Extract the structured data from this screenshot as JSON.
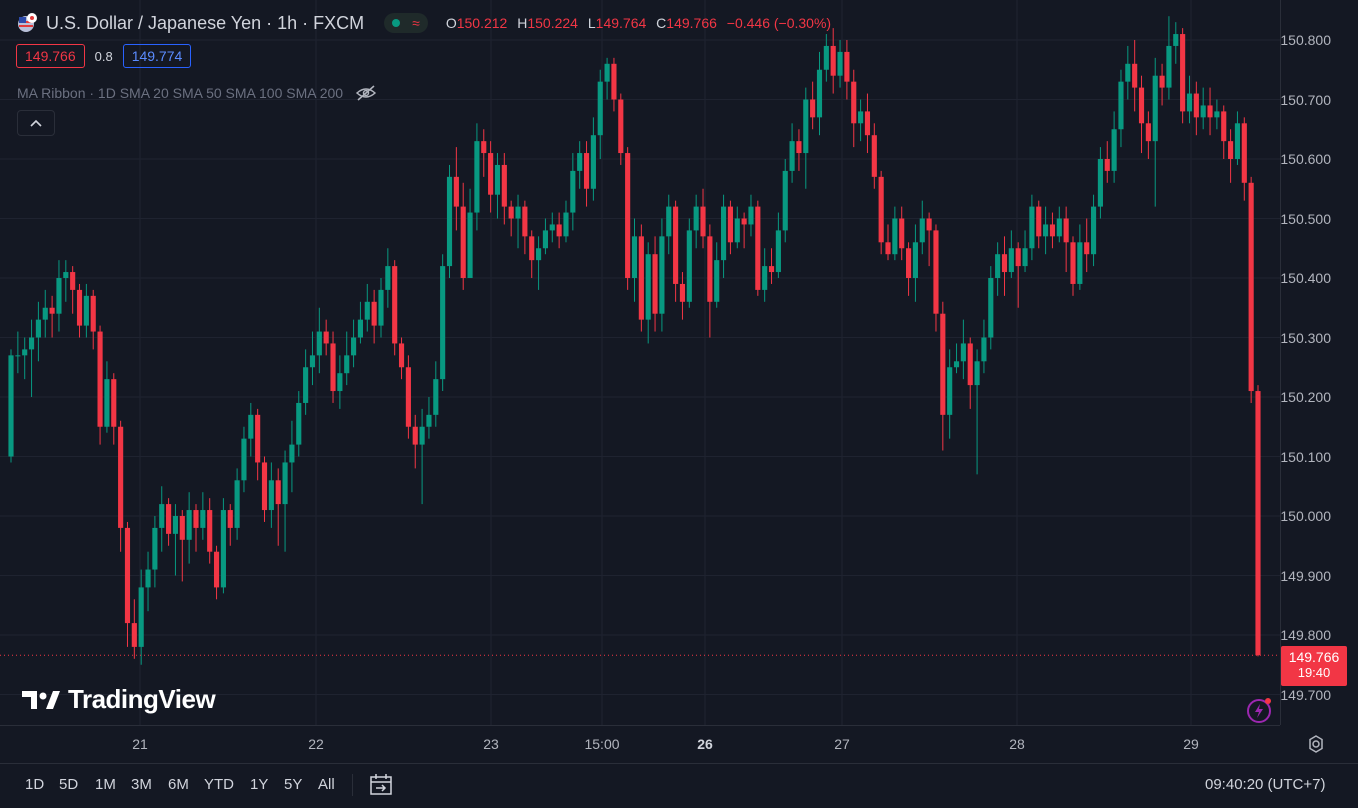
{
  "header": {
    "title": "U.S. Dollar / Japanese Yen · 1h · FXCM",
    "ohlc": {
      "o_key": "O",
      "o_val": "150.212",
      "h_key": "H",
      "h_val": "150.224",
      "l_key": "L",
      "l_val": "149.764",
      "c_key": "C",
      "c_val": "149.766",
      "change": "−0.446 (−0.30%)"
    }
  },
  "trade": {
    "sell_price": "149.766",
    "spread": "0.8",
    "buy_price": "149.774"
  },
  "indicator": {
    "label": "MA Ribbon · 1D SMA 20 SMA 50 SMA 100 SMA 200"
  },
  "current_price": {
    "price": "149.766",
    "countdown": "19:40"
  },
  "logo": {
    "text": "TradingView"
  },
  "time_axis": {
    "labels": [
      "21",
      "22",
      "23",
      "15:00",
      "26",
      "27",
      "28",
      "29"
    ]
  },
  "bottom_bar": {
    "ranges": [
      "1D",
      "5D",
      "1M",
      "3M",
      "6M",
      "YTD",
      "1Y",
      "5Y",
      "All"
    ],
    "clock": "09:40:20 (UTC+7)"
  },
  "colors": {
    "up": "#089981",
    "down": "#f23645",
    "background": "#141823",
    "grid": "#1f2330"
  },
  "chart_data": {
    "type": "candlestick",
    "y_ticks": [
      "150.800",
      "150.700",
      "150.600",
      "150.500",
      "150.400",
      "150.300",
      "150.200",
      "150.100",
      "150.000",
      "149.900",
      "149.800",
      "149.700"
    ],
    "ylim": [
      149.66,
      150.85
    ],
    "candles": [
      [
        150.1,
        150.27,
        150.28,
        150.09
      ],
      [
        150.27,
        150.27,
        150.31,
        150.24
      ],
      [
        150.27,
        150.28,
        150.3,
        150.23
      ],
      [
        150.28,
        150.3,
        150.33,
        150.2
      ],
      [
        150.3,
        150.33,
        150.36,
        150.26
      ],
      [
        150.33,
        150.35,
        150.38,
        150.3
      ],
      [
        150.35,
        150.34,
        150.37,
        150.3
      ],
      [
        150.34,
        150.4,
        150.43,
        150.31
      ],
      [
        150.4,
        150.41,
        150.43,
        150.36
      ],
      [
        150.41,
        150.38,
        150.42,
        150.34
      ],
      [
        150.38,
        150.32,
        150.39,
        150.3
      ],
      [
        150.32,
        150.37,
        150.39,
        150.3
      ],
      [
        150.37,
        150.31,
        150.38,
        150.28
      ],
      [
        150.31,
        150.15,
        150.32,
        150.12
      ],
      [
        150.15,
        150.23,
        150.26,
        150.14
      ],
      [
        150.23,
        150.15,
        150.24,
        150.12
      ],
      [
        150.15,
        149.98,
        150.16,
        149.94
      ],
      [
        149.98,
        149.82,
        149.99,
        149.78
      ],
      [
        149.82,
        149.78,
        149.86,
        149.76
      ],
      [
        149.78,
        149.88,
        149.91,
        149.75
      ],
      [
        149.88,
        149.91,
        149.94,
        149.84
      ],
      [
        149.91,
        149.98,
        150.0,
        149.88
      ],
      [
        149.98,
        150.02,
        150.05,
        149.94
      ],
      [
        150.02,
        149.97,
        150.03,
        149.95
      ],
      [
        149.97,
        150.0,
        150.02,
        149.9
      ],
      [
        150.0,
        149.96,
        150.01,
        149.89
      ],
      [
        149.96,
        150.01,
        150.04,
        149.92
      ],
      [
        150.01,
        149.98,
        150.02,
        149.94
      ],
      [
        149.98,
        150.01,
        150.04,
        149.96
      ],
      [
        150.01,
        149.94,
        150.03,
        149.92
      ],
      [
        149.94,
        149.88,
        149.95,
        149.86
      ],
      [
        149.88,
        150.01,
        150.03,
        149.87
      ],
      [
        150.01,
        149.98,
        150.02,
        149.95
      ],
      [
        149.98,
        150.06,
        150.08,
        149.96
      ],
      [
        150.06,
        150.13,
        150.15,
        150.04
      ],
      [
        150.13,
        150.17,
        150.19,
        150.1
      ],
      [
        150.17,
        150.09,
        150.18,
        150.06
      ],
      [
        150.09,
        150.01,
        150.1,
        149.99
      ],
      [
        150.01,
        150.06,
        150.09,
        149.98
      ],
      [
        150.06,
        150.02,
        150.08,
        149.95
      ],
      [
        150.02,
        150.09,
        150.11,
        149.94
      ],
      [
        150.09,
        150.12,
        150.16,
        150.04
      ],
      [
        150.12,
        150.19,
        150.21,
        150.1
      ],
      [
        150.19,
        150.25,
        150.28,
        150.17
      ],
      [
        150.25,
        150.27,
        150.31,
        150.22
      ],
      [
        150.27,
        150.31,
        150.35,
        150.24
      ],
      [
        150.31,
        150.29,
        150.33,
        150.27
      ],
      [
        150.29,
        150.21,
        150.31,
        150.19
      ],
      [
        150.21,
        150.24,
        150.27,
        150.18
      ],
      [
        150.24,
        150.27,
        150.31,
        150.22
      ],
      [
        150.27,
        150.3,
        150.33,
        150.25
      ],
      [
        150.3,
        150.33,
        150.36,
        150.29
      ],
      [
        150.33,
        150.36,
        150.39,
        150.31
      ],
      [
        150.36,
        150.32,
        150.38,
        150.29
      ],
      [
        150.32,
        150.38,
        150.4,
        150.3
      ],
      [
        150.38,
        150.42,
        150.45,
        150.35
      ],
      [
        150.42,
        150.29,
        150.43,
        150.27
      ],
      [
        150.29,
        150.25,
        150.3,
        150.23
      ],
      [
        150.25,
        150.15,
        150.27,
        150.13
      ],
      [
        150.15,
        150.12,
        150.17,
        150.08
      ],
      [
        150.12,
        150.15,
        150.18,
        150.02
      ],
      [
        150.15,
        150.17,
        150.2,
        150.13
      ],
      [
        150.17,
        150.23,
        150.26,
        150.15
      ],
      [
        150.23,
        150.42,
        150.44,
        150.21
      ],
      [
        150.42,
        150.57,
        150.59,
        150.4
      ],
      [
        150.57,
        150.52,
        150.62,
        150.48
      ],
      [
        150.52,
        150.4,
        150.56,
        150.38
      ],
      [
        150.4,
        150.51,
        150.55,
        150.46
      ],
      [
        150.51,
        150.63,
        150.66,
        150.48
      ],
      [
        150.63,
        150.61,
        150.65,
        150.57
      ],
      [
        150.61,
        150.54,
        150.63,
        150.51
      ],
      [
        150.54,
        150.59,
        150.61,
        150.5
      ],
      [
        150.59,
        150.52,
        150.61,
        150.49
      ],
      [
        150.52,
        150.5,
        150.53,
        150.47
      ],
      [
        150.5,
        150.52,
        150.54,
        150.45
      ],
      [
        150.52,
        150.47,
        150.53,
        150.44
      ],
      [
        150.47,
        150.43,
        150.48,
        150.4
      ],
      [
        150.43,
        150.45,
        150.47,
        150.38
      ],
      [
        150.45,
        150.48,
        150.5,
        150.44
      ],
      [
        150.48,
        150.49,
        150.51,
        150.46
      ],
      [
        150.49,
        150.47,
        150.51,
        150.45
      ],
      [
        150.47,
        150.51,
        150.53,
        150.46
      ],
      [
        150.51,
        150.58,
        150.61,
        150.48
      ],
      [
        150.58,
        150.61,
        150.63,
        150.55
      ],
      [
        150.61,
        150.55,
        150.63,
        150.52
      ],
      [
        150.55,
        150.64,
        150.67,
        150.53
      ],
      [
        150.64,
        150.73,
        150.75,
        150.6
      ],
      [
        150.73,
        150.76,
        150.77,
        150.7
      ],
      [
        150.76,
        150.7,
        150.77,
        150.68
      ],
      [
        150.7,
        150.61,
        150.71,
        150.59
      ],
      [
        150.61,
        150.4,
        150.62,
        150.38
      ],
      [
        150.4,
        150.47,
        150.5,
        150.36
      ],
      [
        150.47,
        150.33,
        150.49,
        150.31
      ],
      [
        150.33,
        150.44,
        150.46,
        150.29
      ],
      [
        150.44,
        150.34,
        150.47,
        150.31
      ],
      [
        150.34,
        150.47,
        150.5,
        150.31
      ],
      [
        150.47,
        150.52,
        150.54,
        150.44
      ],
      [
        150.52,
        150.39,
        150.53,
        150.36
      ],
      [
        150.39,
        150.36,
        150.41,
        150.33
      ],
      [
        150.36,
        150.48,
        150.5,
        150.35
      ],
      [
        150.48,
        150.52,
        150.54,
        150.45
      ],
      [
        150.52,
        150.47,
        150.55,
        150.45
      ],
      [
        150.47,
        150.36,
        150.49,
        150.3
      ],
      [
        150.36,
        150.43,
        150.46,
        150.35
      ],
      [
        150.43,
        150.52,
        150.54,
        150.4
      ],
      [
        150.52,
        150.46,
        150.53,
        150.44
      ],
      [
        150.46,
        150.5,
        150.52,
        150.45
      ],
      [
        150.5,
        150.49,
        150.51,
        150.45
      ],
      [
        150.49,
        150.52,
        150.54,
        150.47
      ],
      [
        150.52,
        150.38,
        150.53,
        150.37
      ],
      [
        150.38,
        150.42,
        150.45,
        150.36
      ],
      [
        150.42,
        150.41,
        150.45,
        150.39
      ],
      [
        150.41,
        150.48,
        150.51,
        150.4
      ],
      [
        150.48,
        150.58,
        150.6,
        150.46
      ],
      [
        150.58,
        150.63,
        150.66,
        150.56
      ],
      [
        150.63,
        150.61,
        150.65,
        150.58
      ],
      [
        150.61,
        150.7,
        150.72,
        150.55
      ],
      [
        150.7,
        150.67,
        150.73,
        150.65
      ],
      [
        150.67,
        150.75,
        150.78,
        150.64
      ],
      [
        150.75,
        150.79,
        150.81,
        150.73
      ],
      [
        150.79,
        150.74,
        150.82,
        150.71
      ],
      [
        150.74,
        150.78,
        150.8,
        150.72
      ],
      [
        150.78,
        150.73,
        150.8,
        150.7
      ],
      [
        150.73,
        150.66,
        150.75,
        150.62
      ],
      [
        150.66,
        150.68,
        150.7,
        150.63
      ],
      [
        150.68,
        150.64,
        150.71,
        150.61
      ],
      [
        150.64,
        150.57,
        150.66,
        150.55
      ],
      [
        150.57,
        150.46,
        150.58,
        150.44
      ],
      [
        150.46,
        150.44,
        150.49,
        150.43
      ],
      [
        150.44,
        150.5,
        150.52,
        150.43
      ],
      [
        150.5,
        150.45,
        150.52,
        150.43
      ],
      [
        150.45,
        150.4,
        150.46,
        150.37
      ],
      [
        150.4,
        150.46,
        150.49,
        150.36
      ],
      [
        150.46,
        150.5,
        150.53,
        150.44
      ],
      [
        150.5,
        150.48,
        150.51,
        150.42
      ],
      [
        150.48,
        150.34,
        150.49,
        150.31
      ],
      [
        150.34,
        150.17,
        150.36,
        150.11
      ],
      [
        150.17,
        150.25,
        150.28,
        150.13
      ],
      [
        150.25,
        150.26,
        150.29,
        150.24
      ],
      [
        150.26,
        150.29,
        150.33,
        150.23
      ],
      [
        150.29,
        150.22,
        150.3,
        150.18
      ],
      [
        150.22,
        150.26,
        150.28,
        150.07
      ],
      [
        150.26,
        150.3,
        150.33,
        150.24
      ],
      [
        150.3,
        150.4,
        150.42,
        150.28
      ],
      [
        150.4,
        150.44,
        150.46,
        150.37
      ],
      [
        150.44,
        150.41,
        150.47,
        150.37
      ],
      [
        150.41,
        150.45,
        150.48,
        150.4
      ],
      [
        150.45,
        150.42,
        150.46,
        150.35
      ],
      [
        150.42,
        150.45,
        150.48,
        150.41
      ],
      [
        150.45,
        150.52,
        150.54,
        150.43
      ],
      [
        150.52,
        150.47,
        150.53,
        150.45
      ],
      [
        150.47,
        150.49,
        150.52,
        150.44
      ],
      [
        150.49,
        150.47,
        150.51,
        150.45
      ],
      [
        150.47,
        150.5,
        150.52,
        150.46
      ],
      [
        150.5,
        150.46,
        150.52,
        150.41
      ],
      [
        150.46,
        150.39,
        150.47,
        150.37
      ],
      [
        150.39,
        150.46,
        150.49,
        150.38
      ],
      [
        150.46,
        150.44,
        150.5,
        150.41
      ],
      [
        150.44,
        150.52,
        150.54,
        150.42
      ],
      [
        150.52,
        150.6,
        150.62,
        150.5
      ],
      [
        150.6,
        150.58,
        150.63,
        150.56
      ],
      [
        150.58,
        150.65,
        150.68,
        150.56
      ],
      [
        150.65,
        150.73,
        150.75,
        150.62
      ],
      [
        150.73,
        150.76,
        150.79,
        150.7
      ],
      [
        150.76,
        150.72,
        150.8,
        150.68
      ],
      [
        150.72,
        150.66,
        150.74,
        150.61
      ],
      [
        150.66,
        150.63,
        150.68,
        150.6
      ],
      [
        150.63,
        150.74,
        150.77,
        150.52
      ],
      [
        150.74,
        150.72,
        150.76,
        150.69
      ],
      [
        150.72,
        150.79,
        150.84,
        150.7
      ],
      [
        150.79,
        150.81,
        150.83,
        150.76
      ],
      [
        150.81,
        150.68,
        150.82,
        150.66
      ],
      [
        150.68,
        150.71,
        150.74,
        150.66
      ],
      [
        150.71,
        150.67,
        150.73,
        150.64
      ],
      [
        150.67,
        150.69,
        150.72,
        150.65
      ],
      [
        150.69,
        150.67,
        150.72,
        150.64
      ],
      [
        150.67,
        150.68,
        150.7,
        150.65
      ],
      [
        150.68,
        150.63,
        150.69,
        150.6
      ],
      [
        150.63,
        150.6,
        150.65,
        150.56
      ],
      [
        150.6,
        150.66,
        150.68,
        150.59
      ],
      [
        150.66,
        150.56,
        150.67,
        150.53
      ],
      [
        150.56,
        150.21,
        150.57,
        150.19
      ],
      [
        150.21,
        149.766,
        150.22,
        149.764
      ]
    ]
  }
}
